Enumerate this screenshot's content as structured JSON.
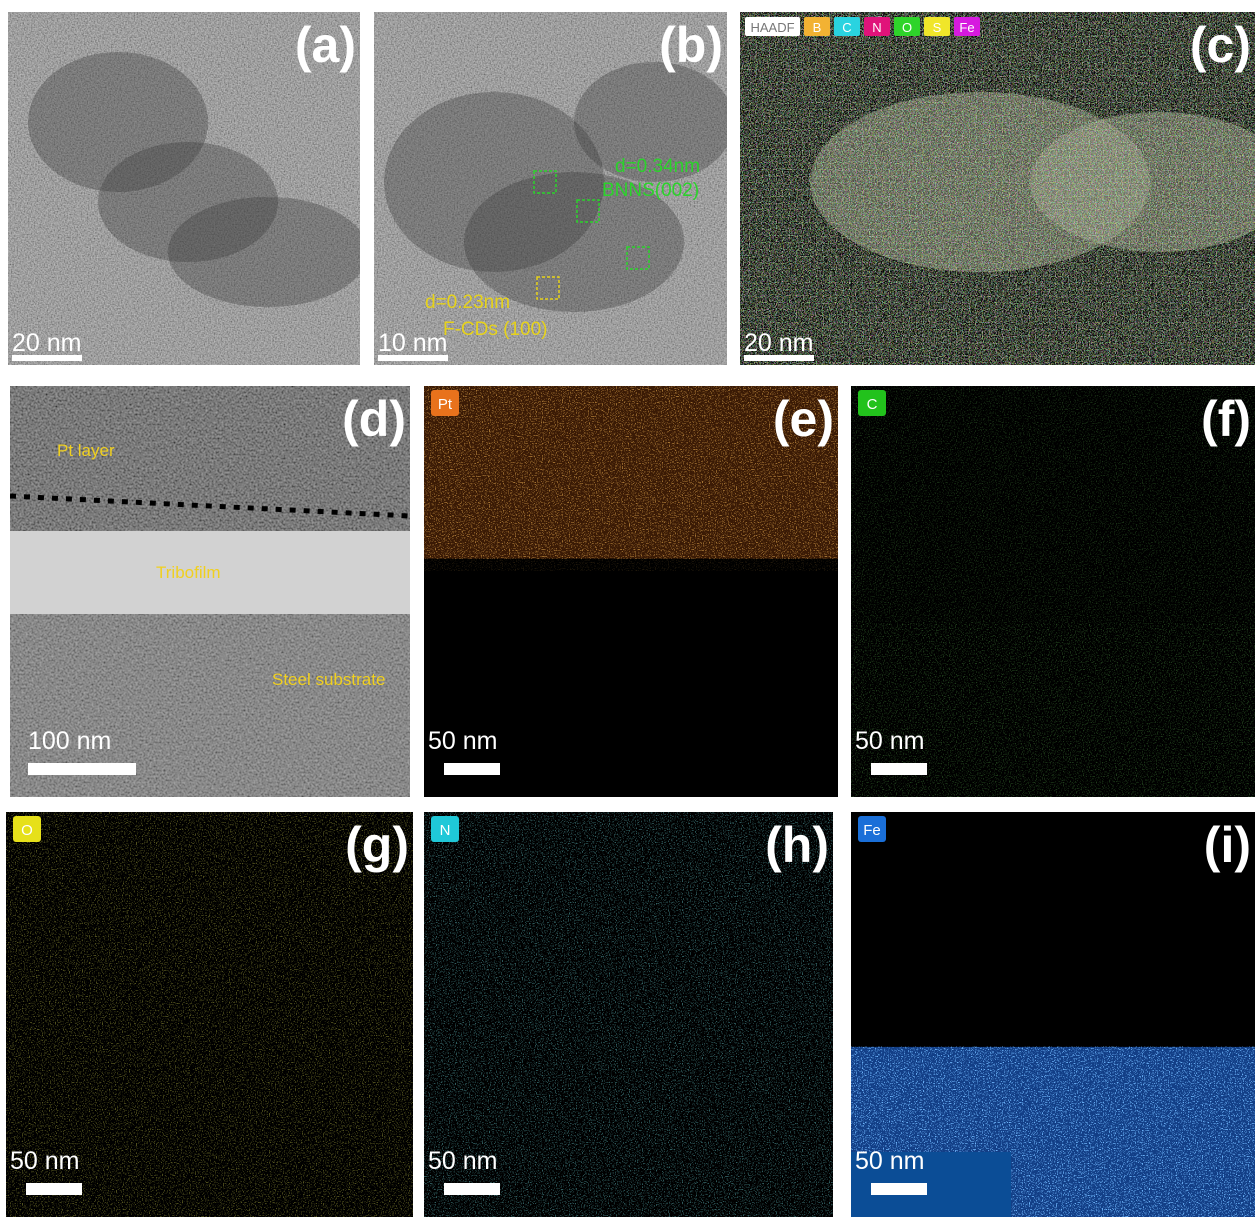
{
  "panels": [
    {
      "label": "(a)",
      "scale_bar": "20 nm"
    },
    {
      "label": "(b)",
      "scale_bar": "10 nm",
      "annotations": [
        "d=0.34nm",
        "BNNS(002)",
        "d=0.23nm",
        "F-CDs (100)"
      ]
    },
    {
      "label": "(c)",
      "scale_bar": "20 nm",
      "legend": [
        "HAADF",
        "B",
        "C",
        "N",
        "O",
        "S",
        "Fe"
      ]
    },
    {
      "label": "(d)",
      "scale_bar": "100 nm",
      "annotations": [
        "Pt layer",
        "Tribofilm",
        "Steel substrate"
      ]
    },
    {
      "label": "(e)",
      "scale_bar": "50 nm",
      "element": "Pt"
    },
    {
      "label": "(f)",
      "scale_bar": "50 nm",
      "element": "C"
    },
    {
      "label": "(g)",
      "scale_bar": "50 nm",
      "element": "O"
    },
    {
      "label": "(h)",
      "scale_bar": "50 nm",
      "element": "N"
    },
    {
      "label": "(i)",
      "scale_bar": "50 nm",
      "element": "Fe"
    }
  ]
}
